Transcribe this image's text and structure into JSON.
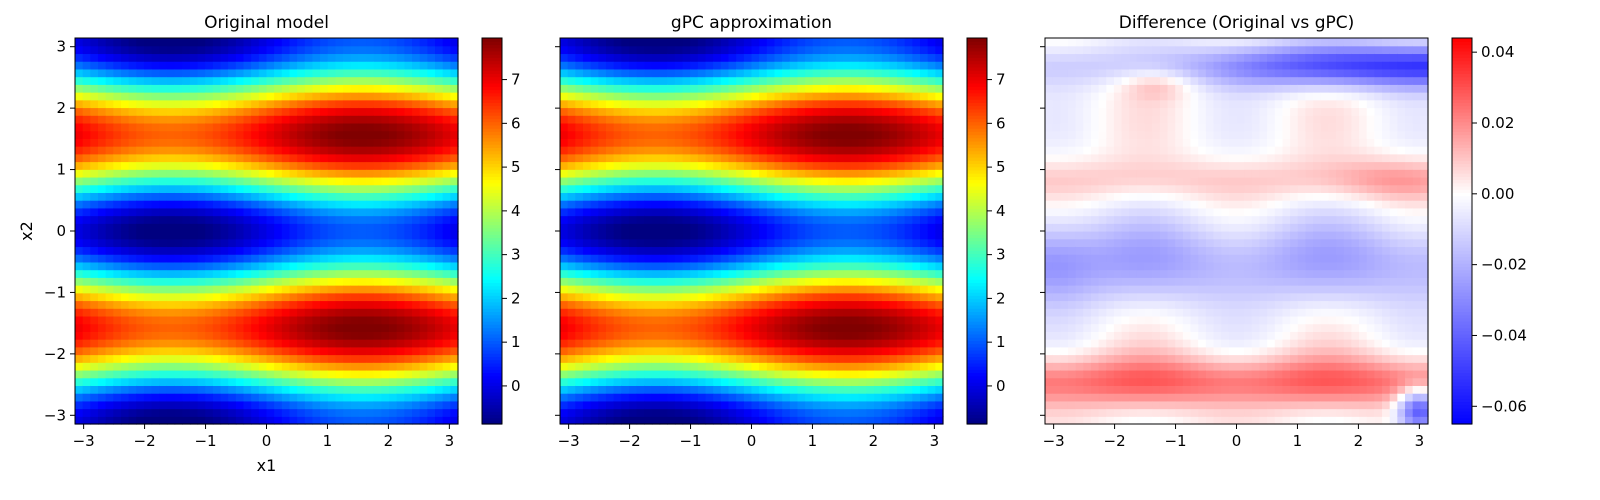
{
  "chart_data": [
    {
      "type": "heatmap",
      "title": "Original model",
      "xlabel": "x1",
      "ylabel": "x2",
      "xlim": [
        -3.14159,
        3.14159
      ],
      "ylim": [
        -3.14159,
        3.14159
      ],
      "grid_size": 50,
      "x_ticks": [
        -3,
        -2,
        -1,
        0,
        1,
        2,
        3
      ],
      "y_ticks": [
        -3,
        -2,
        -1,
        0,
        1,
        2,
        3
      ],
      "show_y_tick_labels": true,
      "field": "ishigami",
      "colormap": "jet",
      "colorbar": {
        "range": [
          -0.87,
          7.95
        ],
        "ticks": [
          0,
          1,
          2,
          3,
          4,
          5,
          6,
          7
        ]
      }
    },
    {
      "type": "heatmap",
      "title": "gPC approximation",
      "xlabel": "",
      "ylabel": "",
      "xlim": [
        -3.14159,
        3.14159
      ],
      "ylim": [
        -3.14159,
        3.14159
      ],
      "grid_size": 50,
      "x_ticks": [
        -3,
        -2,
        -1,
        0,
        1,
        2,
        3
      ],
      "y_ticks": [
        -3,
        -2,
        -1,
        0,
        1,
        2,
        3
      ],
      "show_y_tick_labels": false,
      "field": "ishigami",
      "colormap": "jet",
      "colorbar": {
        "range": [
          -0.87,
          7.95
        ],
        "ticks": [
          0,
          1,
          2,
          3,
          4,
          5,
          6,
          7
        ]
      }
    },
    {
      "type": "heatmap",
      "title": "Difference (Original vs gPC)",
      "xlabel": "",
      "ylabel": "",
      "xlim": [
        -3.14159,
        3.14159
      ],
      "ylim": [
        -3.14159,
        3.14159
      ],
      "grid_size": 50,
      "x_ticks": [
        -3,
        -2,
        -1,
        0,
        1,
        2,
        3
      ],
      "y_ticks": [
        -3,
        -2,
        -1,
        0,
        1,
        2,
        3
      ],
      "show_y_tick_labels": false,
      "field": "difference",
      "colormap": "bwr",
      "colorbar": {
        "range": [
          -0.065,
          0.044
        ],
        "ticks": [
          -0.06,
          -0.04,
          -0.02,
          0.0,
          0.02,
          0.04
        ]
      }
    }
  ]
}
